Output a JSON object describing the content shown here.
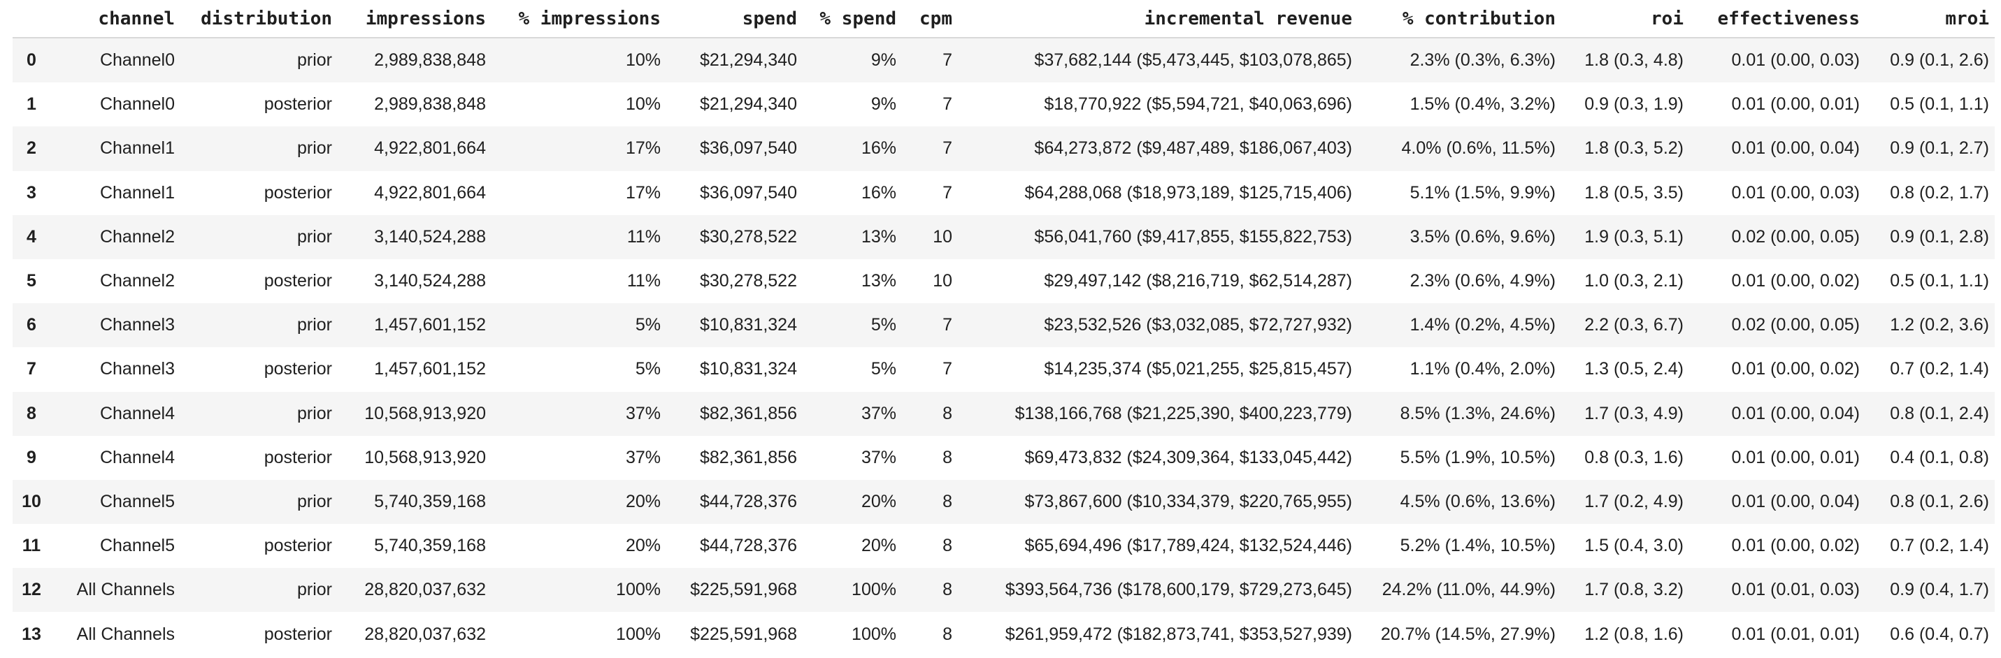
{
  "table": {
    "columns": [
      {
        "key": "index",
        "label": ""
      },
      {
        "key": "channel",
        "label": "channel"
      },
      {
        "key": "distribution",
        "label": "distribution"
      },
      {
        "key": "impressions",
        "label": "impressions"
      },
      {
        "key": "pct_impressions",
        "label": "% impressions"
      },
      {
        "key": "spend",
        "label": "spend"
      },
      {
        "key": "pct_spend",
        "label": "% spend"
      },
      {
        "key": "cpm",
        "label": "cpm"
      },
      {
        "key": "incremental_revenue",
        "label": "incremental revenue"
      },
      {
        "key": "pct_contribution",
        "label": "% contribution"
      },
      {
        "key": "roi",
        "label": "roi"
      },
      {
        "key": "effectiveness",
        "label": "effectiveness"
      },
      {
        "key": "mroi",
        "label": "mroi"
      }
    ],
    "rows": [
      [
        "0",
        "Channel0",
        "prior",
        "2,989,838,848",
        "10%",
        "$21,294,340",
        "9%",
        "7",
        "$37,682,144 ($5,473,445, $103,078,865)",
        "2.3% (0.3%, 6.3%)",
        "1.8 (0.3, 4.8)",
        "0.01 (0.00, 0.03)",
        "0.9 (0.1, 2.6)"
      ],
      [
        "1",
        "Channel0",
        "posterior",
        "2,989,838,848",
        "10%",
        "$21,294,340",
        "9%",
        "7",
        "$18,770,922 ($5,594,721, $40,063,696)",
        "1.5% (0.4%, 3.2%)",
        "0.9 (0.3, 1.9)",
        "0.01 (0.00, 0.01)",
        "0.5 (0.1, 1.1)"
      ],
      [
        "2",
        "Channel1",
        "prior",
        "4,922,801,664",
        "17%",
        "$36,097,540",
        "16%",
        "7",
        "$64,273,872 ($9,487,489, $186,067,403)",
        "4.0% (0.6%, 11.5%)",
        "1.8 (0.3, 5.2)",
        "0.01 (0.00, 0.04)",
        "0.9 (0.1, 2.7)"
      ],
      [
        "3",
        "Channel1",
        "posterior",
        "4,922,801,664",
        "17%",
        "$36,097,540",
        "16%",
        "7",
        "$64,288,068 ($18,973,189, $125,715,406)",
        "5.1% (1.5%, 9.9%)",
        "1.8 (0.5, 3.5)",
        "0.01 (0.00, 0.03)",
        "0.8 (0.2, 1.7)"
      ],
      [
        "4",
        "Channel2",
        "prior",
        "3,140,524,288",
        "11%",
        "$30,278,522",
        "13%",
        "10",
        "$56,041,760 ($9,417,855, $155,822,753)",
        "3.5% (0.6%, 9.6%)",
        "1.9 (0.3, 5.1)",
        "0.02 (0.00, 0.05)",
        "0.9 (0.1, 2.8)"
      ],
      [
        "5",
        "Channel2",
        "posterior",
        "3,140,524,288",
        "11%",
        "$30,278,522",
        "13%",
        "10",
        "$29,497,142 ($8,216,719, $62,514,287)",
        "2.3% (0.6%, 4.9%)",
        "1.0 (0.3, 2.1)",
        "0.01 (0.00, 0.02)",
        "0.5 (0.1, 1.1)"
      ],
      [
        "6",
        "Channel3",
        "prior",
        "1,457,601,152",
        "5%",
        "$10,831,324",
        "5%",
        "7",
        "$23,532,526 ($3,032,085, $72,727,932)",
        "1.4% (0.2%, 4.5%)",
        "2.2 (0.3, 6.7)",
        "0.02 (0.00, 0.05)",
        "1.2 (0.2, 3.6)"
      ],
      [
        "7",
        "Channel3",
        "posterior",
        "1,457,601,152",
        "5%",
        "$10,831,324",
        "5%",
        "7",
        "$14,235,374 ($5,021,255, $25,815,457)",
        "1.1% (0.4%, 2.0%)",
        "1.3 (0.5, 2.4)",
        "0.01 (0.00, 0.02)",
        "0.7 (0.2, 1.4)"
      ],
      [
        "8",
        "Channel4",
        "prior",
        "10,568,913,920",
        "37%",
        "$82,361,856",
        "37%",
        "8",
        "$138,166,768 ($21,225,390, $400,223,779)",
        "8.5% (1.3%, 24.6%)",
        "1.7 (0.3, 4.9)",
        "0.01 (0.00, 0.04)",
        "0.8 (0.1, 2.4)"
      ],
      [
        "9",
        "Channel4",
        "posterior",
        "10,568,913,920",
        "37%",
        "$82,361,856",
        "37%",
        "8",
        "$69,473,832 ($24,309,364, $133,045,442)",
        "5.5% (1.9%, 10.5%)",
        "0.8 (0.3, 1.6)",
        "0.01 (0.00, 0.01)",
        "0.4 (0.1, 0.8)"
      ],
      [
        "10",
        "Channel5",
        "prior",
        "5,740,359,168",
        "20%",
        "$44,728,376",
        "20%",
        "8",
        "$73,867,600 ($10,334,379, $220,765,955)",
        "4.5% (0.6%, 13.6%)",
        "1.7 (0.2, 4.9)",
        "0.01 (0.00, 0.04)",
        "0.8 (0.1, 2.6)"
      ],
      [
        "11",
        "Channel5",
        "posterior",
        "5,740,359,168",
        "20%",
        "$44,728,376",
        "20%",
        "8",
        "$65,694,496 ($17,789,424, $132,524,446)",
        "5.2% (1.4%, 10.5%)",
        "1.5 (0.4, 3.0)",
        "0.01 (0.00, 0.02)",
        "0.7 (0.2, 1.4)"
      ],
      [
        "12",
        "All Channels",
        "prior",
        "28,820,037,632",
        "100%",
        "$225,591,968",
        "100%",
        "8",
        "$393,564,736 ($178,600,179, $729,273,645)",
        "24.2% (11.0%, 44.9%)",
        "1.7 (0.8, 3.2)",
        "0.01 (0.01, 0.03)",
        "0.9 (0.4, 1.7)"
      ],
      [
        "13",
        "All Channels",
        "posterior",
        "28,820,037,632",
        "100%",
        "$225,591,968",
        "100%",
        "8",
        "$261,959,472 ($182,873,741, $353,527,939)",
        "20.7% (14.5%, 27.9%)",
        "1.2 (0.8, 1.6)",
        "0.01 (0.01, 0.01)",
        "0.6 (0.4, 0.7)"
      ]
    ],
    "colors": {
      "text": "#1f1f1f",
      "zebra_row": "#f5f5f5",
      "header_border": "#d8d8d8",
      "background": "#ffffff"
    }
  }
}
